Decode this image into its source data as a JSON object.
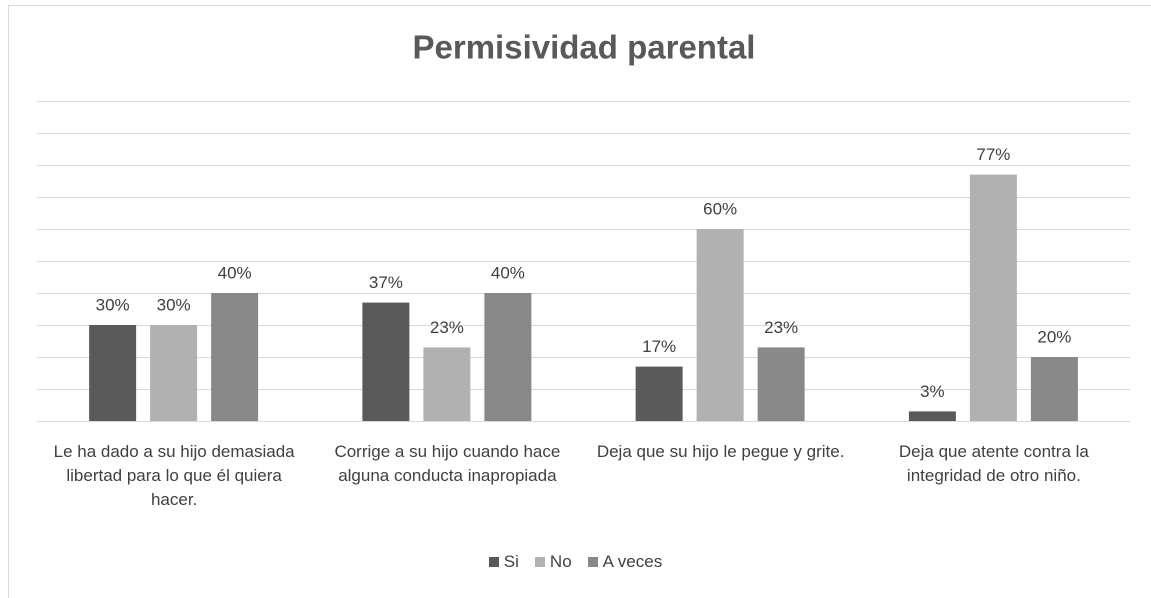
{
  "chart_data": {
    "type": "bar",
    "title": "Permisividad parental",
    "categories": [
      "Le ha dado a su hijo demasiada libertad para lo que él quiera hacer.",
      "Corrige a su hijo cuando hace alguna conducta inapropiada",
      "Deja que su hijo le pegue y grite.",
      "Deja que atente contra la integridad de otro niño."
    ],
    "series": [
      {
        "name": "Si",
        "color": "#5a5a5a",
        "values": [
          30,
          37,
          17,
          3
        ],
        "value_labels": [
          "30%",
          "37%",
          "17%",
          "3%"
        ]
      },
      {
        "name": "No",
        "color": "#b1b1b1",
        "values": [
          30,
          23,
          60,
          77
        ],
        "value_labels": [
          "30%",
          "23%",
          "60%",
          "77%"
        ]
      },
      {
        "name": "A veces",
        "color": "#888888",
        "values": [
          40,
          40,
          23,
          20
        ],
        "value_labels": [
          "40%",
          "40%",
          "23%",
          "20%"
        ]
      }
    ],
    "ylim": [
      0,
      100
    ],
    "yticks": [
      0,
      10,
      20,
      30,
      40,
      50,
      60,
      70,
      80,
      90,
      100
    ],
    "grid": true,
    "legend": "bottom"
  }
}
